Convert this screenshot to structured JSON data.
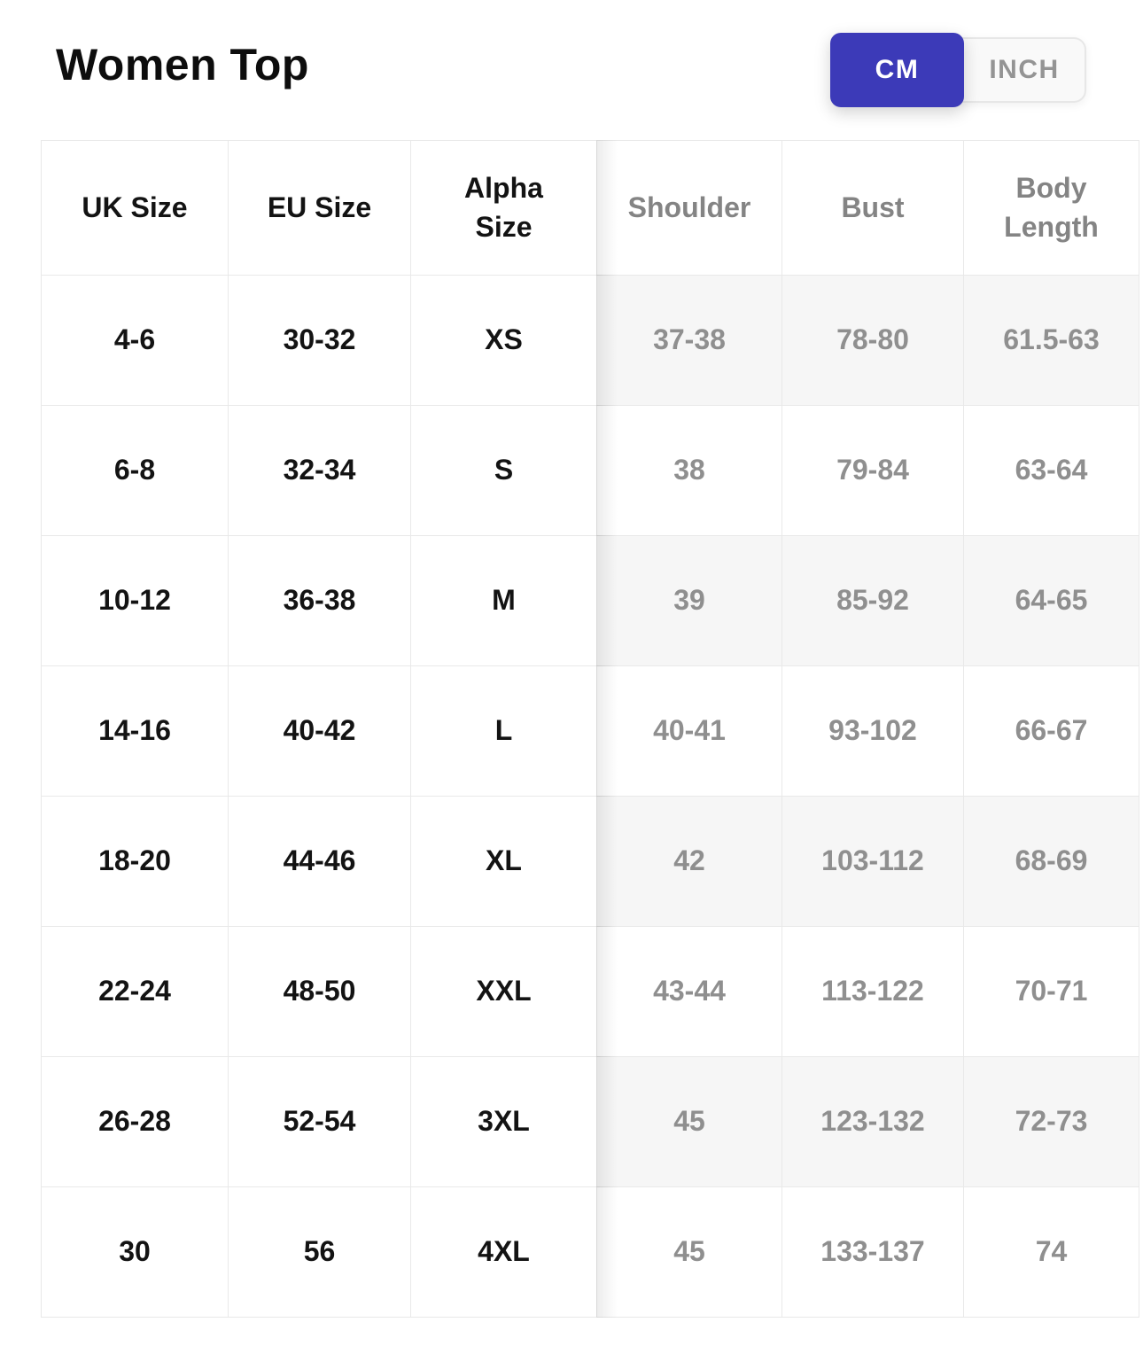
{
  "header": {
    "title": "Women Top",
    "unit_toggle": {
      "cm_label": "CM",
      "inch_label": "INCH",
      "selected": "CM",
      "active_color": "#3c3ab8"
    }
  },
  "colors": {
    "accent": "#3c3ab8",
    "stripe_background": "#f6f6f6",
    "muted_text": "#8f8f8f",
    "grid_border": "#e9e9e9"
  },
  "table": {
    "columns": [
      {
        "key": "uk-size",
        "label": "UK Size",
        "frozen": true
      },
      {
        "key": "eu-size",
        "label": "EU Size",
        "frozen": true
      },
      {
        "key": "alpha-size",
        "label": "Alpha Size",
        "frozen": true
      },
      {
        "key": "shoulder",
        "label": "Shoulder",
        "frozen": false
      },
      {
        "key": "bust",
        "label": "Bust",
        "frozen": false
      },
      {
        "key": "body-length",
        "label": "Body Length",
        "frozen": false
      }
    ],
    "rows": [
      [
        "4-6",
        "30-32",
        "XS",
        "37-38",
        "78-80",
        "61.5-63"
      ],
      [
        "6-8",
        "32-34",
        "S",
        "38",
        "79-84",
        "63-64"
      ],
      [
        "10-12",
        "36-38",
        "M",
        "39",
        "85-92",
        "64-65"
      ],
      [
        "14-16",
        "40-42",
        "L",
        "40-41",
        "93-102",
        "66-67"
      ],
      [
        "18-20",
        "44-46",
        "XL",
        "42",
        "103-112",
        "68-69"
      ],
      [
        "22-24",
        "48-50",
        "XXL",
        "43-44",
        "113-122",
        "70-71"
      ],
      [
        "26-28",
        "52-54",
        "3XL",
        "45",
        "123-132",
        "72-73"
      ],
      [
        "30",
        "56",
        "4XL",
        "45",
        "133-137",
        "74"
      ]
    ]
  }
}
